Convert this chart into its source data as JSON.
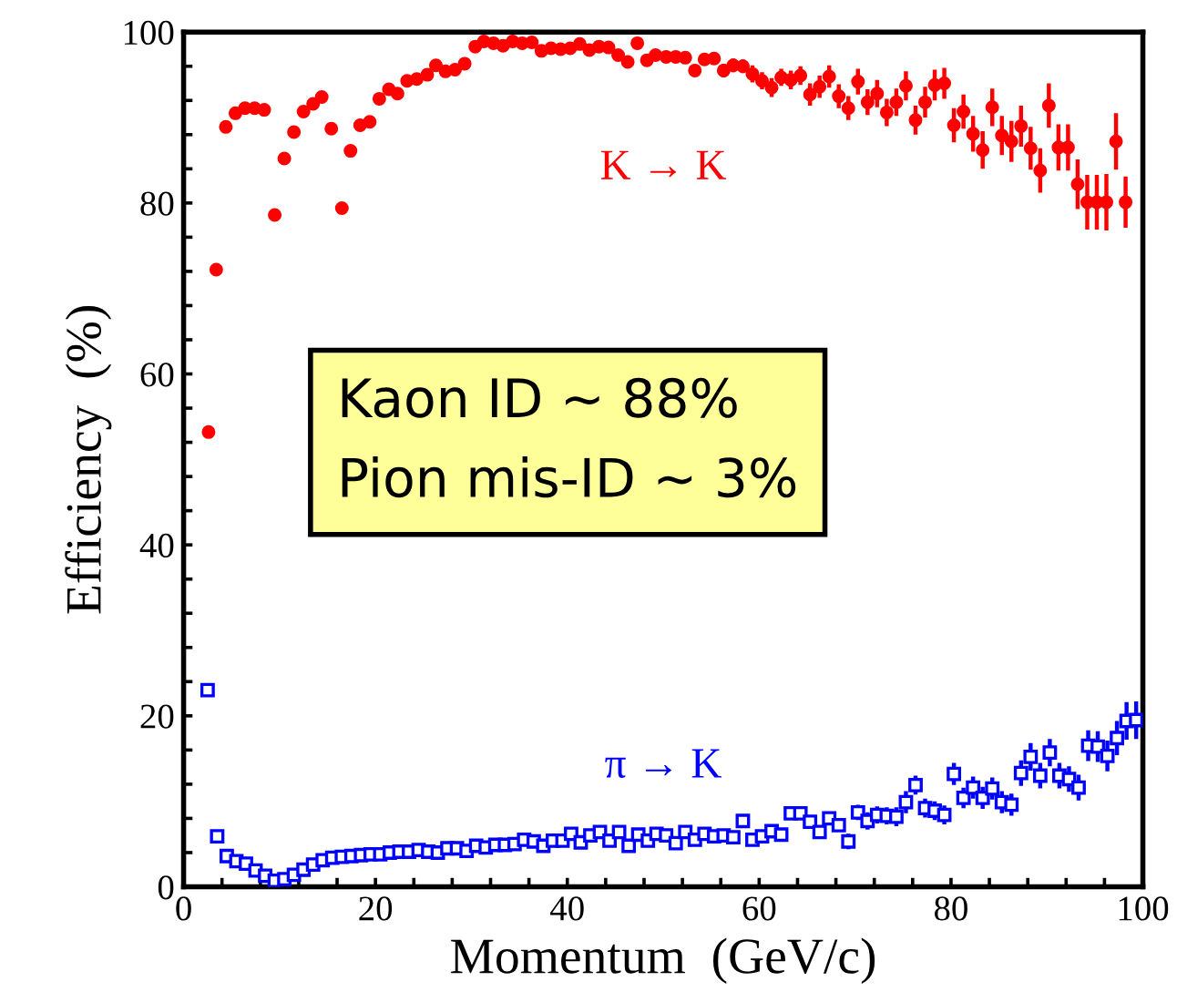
{
  "chart_data": {
    "type": "scatter",
    "xlabel": "Momentum  (GeV/c)",
    "ylabel": "Efficiency  (%)",
    "xlim": [
      0,
      100
    ],
    "ylim": [
      0,
      100
    ],
    "xticks": [
      0,
      {
        "value": 4,
        "label": null
      },
      {
        "value": 8,
        "label": null
      },
      {
        "value": 12,
        "label": null
      },
      {
        "value": 16,
        "label": null
      },
      20,
      {
        "value": 24,
        "label": null
      },
      {
        "value": 28,
        "label": null
      },
      {
        "value": 32,
        "label": null
      },
      {
        "value": 36,
        "label": null
      },
      40,
      {
        "value": 44,
        "label": null
      },
      {
        "value": 48,
        "label": null
      },
      {
        "value": 52,
        "label": null
      },
      {
        "value": 56,
        "label": null
      },
      60,
      {
        "value": 64,
        "label": null
      },
      {
        "value": 68,
        "label": null
      },
      {
        "value": 72,
        "label": null
      },
      {
        "value": 76,
        "label": null
      },
      80,
      {
        "value": 84,
        "label": null
      },
      {
        "value": 88,
        "label": null
      },
      {
        "value": 92,
        "label": null
      },
      {
        "value": 96,
        "label": null
      },
      100
    ],
    "yticks": [
      0,
      {
        "value": 4,
        "label": null
      },
      {
        "value": 8,
        "label": null
      },
      {
        "value": 12,
        "label": null
      },
      {
        "value": 16,
        "label": null
      },
      20,
      {
        "value": 24,
        "label": null
      },
      {
        "value": 28,
        "label": null
      },
      {
        "value": 32,
        "label": null
      },
      {
        "value": 36,
        "label": null
      },
      40,
      {
        "value": 44,
        "label": null
      },
      {
        "value": 48,
        "label": null
      },
      {
        "value": 52,
        "label": null
      },
      {
        "value": 56,
        "label": null
      },
      60,
      {
        "value": 64,
        "label": null
      },
      {
        "value": 68,
        "label": null
      },
      {
        "value": 72,
        "label": null
      },
      {
        "value": 76,
        "label": null
      },
      80,
      {
        "value": 84,
        "label": null
      },
      {
        "value": 88,
        "label": null
      },
      {
        "value": 92,
        "label": null
      },
      {
        "value": 96,
        "label": null
      },
      100
    ],
    "grid": false,
    "legend": false,
    "annotations": [
      "Kaon ID ~ 88%\nPion mis-ID ~ 3%"
    ],
    "series": [
      {
        "name": "K → K",
        "color": "#ff0000",
        "marker": "circle",
        "x": [
          2.6,
          3.4,
          4.4,
          5.4,
          6.4,
          7.4,
          8.4,
          9.5,
          10.5,
          11.5,
          12.5,
          13.5,
          14.4,
          15.4,
          16.5,
          17.4,
          18.4,
          19.4,
          20.4,
          21.4,
          22.3,
          23.3,
          24.3,
          25.4,
          26.3,
          27.3,
          28.3,
          29.3,
          30.4,
          31.3,
          32.3,
          33.3,
          34.3,
          35.3,
          36.3,
          37.3,
          38.3,
          39.3,
          40.3,
          41.3,
          42.3,
          43.3,
          44.3,
          45.3,
          46.3,
          47.3,
          48.3,
          49.2,
          50.3,
          51.3,
          52.3,
          53.3,
          54.3,
          55.3,
          56.3,
          57.3,
          58.3,
          59.3,
          60.3,
          61.3,
          62.3,
          63.3,
          64.3,
          65.3,
          66.3,
          67.3,
          68.3,
          69.3,
          70.3,
          71.3,
          72.3,
          73.3,
          74.3,
          75.3,
          76.3,
          77.3,
          78.3,
          79.3,
          80.3,
          81.3,
          82.3,
          83.3,
          84.3,
          85.3,
          86.3,
          87.3,
          88.3,
          89.3,
          90.2,
          91.2,
          92.2,
          93.2,
          94.2,
          95.2,
          96.2,
          97.2,
          98.2
        ],
        "values": [
          53.2,
          72.2,
          88.9,
          90.5,
          91.1,
          91.1,
          90.9,
          78.6,
          85.2,
          88.3,
          90.7,
          91.6,
          92.4,
          88.7,
          79.4,
          86.1,
          89.1,
          89.5,
          92.2,
          93.3,
          92.8,
          94.3,
          94.5,
          95.0,
          96.1,
          95.4,
          95.6,
          96.3,
          98.3,
          98.9,
          98.7,
          98.4,
          98.9,
          98.7,
          98.8,
          97.8,
          98.1,
          98.0,
          98.1,
          98.6,
          97.9,
          98.3,
          98.2,
          97.3,
          96.5,
          98.7,
          96.7,
          97.3,
          97.1,
          97.1,
          97.0,
          95.5,
          96.8,
          96.9,
          95.5,
          96.1,
          96.0,
          95.1,
          94.3,
          93.5,
          94.7,
          94.4,
          94.9,
          92.7,
          93.6,
          94.8,
          92.5,
          91.1,
          94.2,
          91.8,
          92.8,
          90.6,
          91.8,
          93.7,
          89.7,
          91.8,
          93.8,
          94.0,
          89.1,
          90.7,
          88.1,
          86.2,
          91.2,
          87.9,
          87.2,
          89.0,
          86.4,
          83.8,
          91.4,
          86.5,
          86.5,
          82.2,
          80.1,
          80.1,
          80.1,
          87.2,
          80.1
        ],
        "errors": [
          null,
          null,
          null,
          null,
          null,
          null,
          null,
          null,
          null,
          null,
          null,
          null,
          null,
          null,
          null,
          null,
          null,
          null,
          null,
          null,
          null,
          null,
          null,
          null,
          null,
          null,
          null,
          null,
          null,
          null,
          null,
          null,
          null,
          null,
          null,
          null,
          null,
          null,
          null,
          null,
          null,
          null,
          null,
          null,
          null,
          null,
          null,
          null,
          0.5,
          0.5,
          0.5,
          0.7,
          0.6,
          0.6,
          0.8,
          0.8,
          0.8,
          1.0,
          1.0,
          1.1,
          1.0,
          1.1,
          1.1,
          1.3,
          1.3,
          1.3,
          1.4,
          1.4,
          1.5,
          1.5,
          1.6,
          1.6,
          1.6,
          1.7,
          1.7,
          1.8,
          1.8,
          1.8,
          2.0,
          2.0,
          2.1,
          2.2,
          2.2,
          2.3,
          2.4,
          2.4,
          2.5,
          2.6,
          2.6,
          2.7,
          2.7,
          2.9,
          3.2,
          3.2,
          3.3,
          3.3,
          3.0
        ]
      },
      {
        "name": "π → K",
        "color": "#0000ff",
        "marker": "square",
        "x": [
          2.5,
          3.5,
          4.5,
          5.5,
          6.5,
          7.5,
          8.5,
          9.5,
          10.5,
          11.5,
          12.5,
          13.5,
          14.5,
          15.5,
          16.5,
          17.5,
          18.5,
          19.5,
          20.5,
          21.5,
          22.5,
          23.5,
          24.5,
          25.5,
          26.5,
          27.5,
          28.5,
          29.5,
          30.5,
          31.5,
          32.5,
          33.5,
          34.5,
          35.5,
          36.5,
          37.5,
          38.5,
          39.5,
          40.4,
          41.4,
          42.4,
          43.4,
          44.4,
          45.4,
          46.4,
          47.4,
          48.4,
          49.3,
          50.3,
          51.3,
          52.3,
          53.3,
          54.3,
          55.3,
          56.3,
          57.3,
          58.3,
          59.3,
          60.3,
          61.3,
          62.3,
          63.3,
          64.3,
          65.3,
          66.3,
          67.3,
          68.3,
          69.3,
          70.3,
          71.3,
          72.3,
          73.3,
          74.3,
          75.3,
          76.3,
          77.3,
          78.3,
          79.3,
          80.3,
          81.3,
          82.3,
          83.3,
          84.3,
          85.3,
          86.3,
          87.3,
          88.3,
          89.3,
          90.3,
          91.3,
          92.3,
          93.3,
          94.3,
          95.3,
          96.3,
          97.3,
          98.3,
          99.3
        ],
        "values": [
          23.0,
          5.9,
          3.6,
          3.0,
          2.7,
          1.9,
          1.3,
          0.7,
          0.9,
          1.4,
          2.0,
          2.6,
          3.1,
          3.4,
          3.5,
          3.6,
          3.7,
          3.8,
          3.8,
          4.0,
          4.1,
          4.1,
          4.3,
          4.1,
          4.0,
          4.5,
          4.5,
          4.2,
          4.8,
          4.6,
          4.9,
          4.9,
          5.0,
          5.5,
          5.3,
          4.8,
          5.4,
          5.4,
          6.2,
          5.2,
          6.0,
          6.4,
          5.4,
          6.4,
          4.8,
          6.1,
          5.4,
          6.2,
          6.0,
          5.1,
          6.4,
          5.5,
          6.2,
          5.9,
          6.0,
          5.8,
          7.7,
          5.5,
          5.9,
          6.5,
          6.1,
          8.6,
          8.6,
          7.6,
          6.4,
          8.0,
          7.2,
          5.3,
          8.7,
          7.7,
          8.4,
          8.3,
          8.2,
          9.9,
          11.9,
          9.2,
          8.9,
          8.4,
          13.2,
          10.4,
          11.6,
          10.4,
          11.5,
          9.9,
          9.6,
          13.3,
          15.2,
          13.0,
          15.7,
          13.0,
          12.6,
          11.6,
          16.5,
          16.4,
          15.3,
          17.4,
          19.4,
          19.5
        ],
        "errors": [
          null,
          null,
          null,
          null,
          null,
          null,
          null,
          null,
          null,
          null,
          null,
          null,
          null,
          null,
          null,
          null,
          null,
          null,
          null,
          null,
          null,
          null,
          null,
          null,
          null,
          null,
          null,
          null,
          null,
          null,
          null,
          null,
          null,
          null,
          null,
          null,
          null,
          null,
          null,
          null,
          null,
          null,
          null,
          null,
          null,
          null,
          null,
          null,
          0.5,
          0.5,
          0.5,
          0.5,
          0.5,
          0.5,
          0.5,
          0.5,
          0.5,
          0.7,
          0.7,
          0.7,
          0.7,
          0.7,
          0.7,
          0.7,
          0.7,
          0.7,
          0.7,
          0.9,
          0.9,
          1.0,
          1.0,
          1.0,
          1.1,
          1.3,
          1.1,
          1.1,
          1.1,
          1.1,
          1.3,
          1.2,
          1.3,
          1.3,
          1.3,
          1.3,
          1.3,
          1.5,
          1.6,
          1.5,
          1.6,
          1.5,
          1.5,
          1.5,
          1.8,
          1.8,
          1.8,
          2.0,
          2.2,
          2.2
        ]
      }
    ]
  }
}
